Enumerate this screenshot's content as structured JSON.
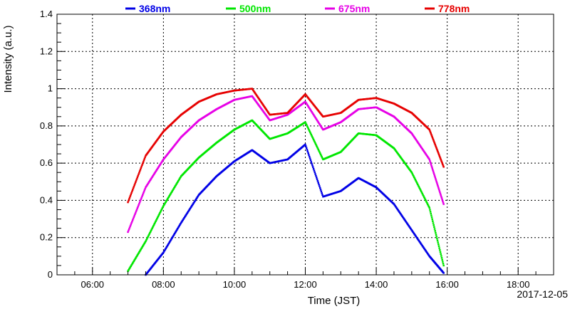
{
  "chart_data": {
    "type": "scatter",
    "xlabel": "Time (JST)",
    "ylabel": "Intensity (a.u.)",
    "date": "2017-12-05",
    "xlim": [
      5.0,
      19.0
    ],
    "ylim": [
      0,
      1.4
    ],
    "x_ticks": [
      "06:00",
      "08:00",
      "10:00",
      "12:00",
      "14:00",
      "16:00",
      "18:00"
    ],
    "x_tick_values": [
      6,
      8,
      10,
      12,
      14,
      16,
      18
    ],
    "y_ticks": [
      "0",
      "0.2",
      "0.4",
      "0.6",
      "0.8",
      "1",
      "1.2",
      "1.4"
    ],
    "y_tick_values": [
      0,
      0.2,
      0.4,
      0.6,
      0.8,
      1.0,
      1.2,
      1.4
    ],
    "grid": true,
    "legend_position": "top",
    "series": [
      {
        "name": "368nm",
        "color": "#0000e6",
        "x": [
          7.5,
          8.0,
          8.5,
          9.0,
          9.5,
          10.0,
          10.5,
          11.0,
          11.5,
          12.0,
          12.5,
          13.0,
          13.5,
          14.0,
          14.5,
          15.0,
          15.5,
          15.9
        ],
        "y": [
          0.0,
          0.12,
          0.28,
          0.43,
          0.53,
          0.61,
          0.67,
          0.6,
          0.62,
          0.7,
          0.42,
          0.45,
          0.52,
          0.47,
          0.38,
          0.24,
          0.1,
          0.01
        ]
      },
      {
        "name": "500nm",
        "color": "#00e600",
        "x": [
          7.0,
          7.5,
          8.0,
          8.5,
          9.0,
          9.5,
          10.0,
          10.5,
          11.0,
          11.5,
          12.0,
          12.5,
          13.0,
          13.5,
          14.0,
          14.5,
          15.0,
          15.5,
          15.9
        ],
        "y": [
          0.02,
          0.18,
          0.37,
          0.53,
          0.63,
          0.71,
          0.78,
          0.83,
          0.73,
          0.76,
          0.82,
          0.62,
          0.66,
          0.76,
          0.75,
          0.68,
          0.55,
          0.36,
          0.05
        ]
      },
      {
        "name": "675nm",
        "color": "#e600e6",
        "x": [
          7.0,
          7.5,
          8.0,
          8.5,
          9.0,
          9.5,
          10.0,
          10.5,
          11.0,
          11.5,
          12.0,
          12.5,
          13.0,
          13.5,
          14.0,
          14.5,
          15.0,
          15.5,
          15.9
        ],
        "y": [
          0.23,
          0.47,
          0.62,
          0.74,
          0.83,
          0.89,
          0.94,
          0.96,
          0.83,
          0.86,
          0.93,
          0.78,
          0.82,
          0.89,
          0.9,
          0.85,
          0.76,
          0.62,
          0.38
        ]
      },
      {
        "name": "778nm",
        "color": "#e60000",
        "x": [
          7.0,
          7.5,
          8.0,
          8.5,
          9.0,
          9.5,
          10.0,
          10.5,
          11.0,
          11.5,
          12.0,
          12.5,
          13.0,
          13.5,
          14.0,
          14.5,
          15.0,
          15.5,
          15.9
        ],
        "y": [
          0.39,
          0.64,
          0.77,
          0.86,
          0.93,
          0.97,
          0.99,
          1.0,
          0.86,
          0.87,
          0.97,
          0.85,
          0.87,
          0.94,
          0.95,
          0.92,
          0.87,
          0.78,
          0.58
        ]
      }
    ]
  }
}
